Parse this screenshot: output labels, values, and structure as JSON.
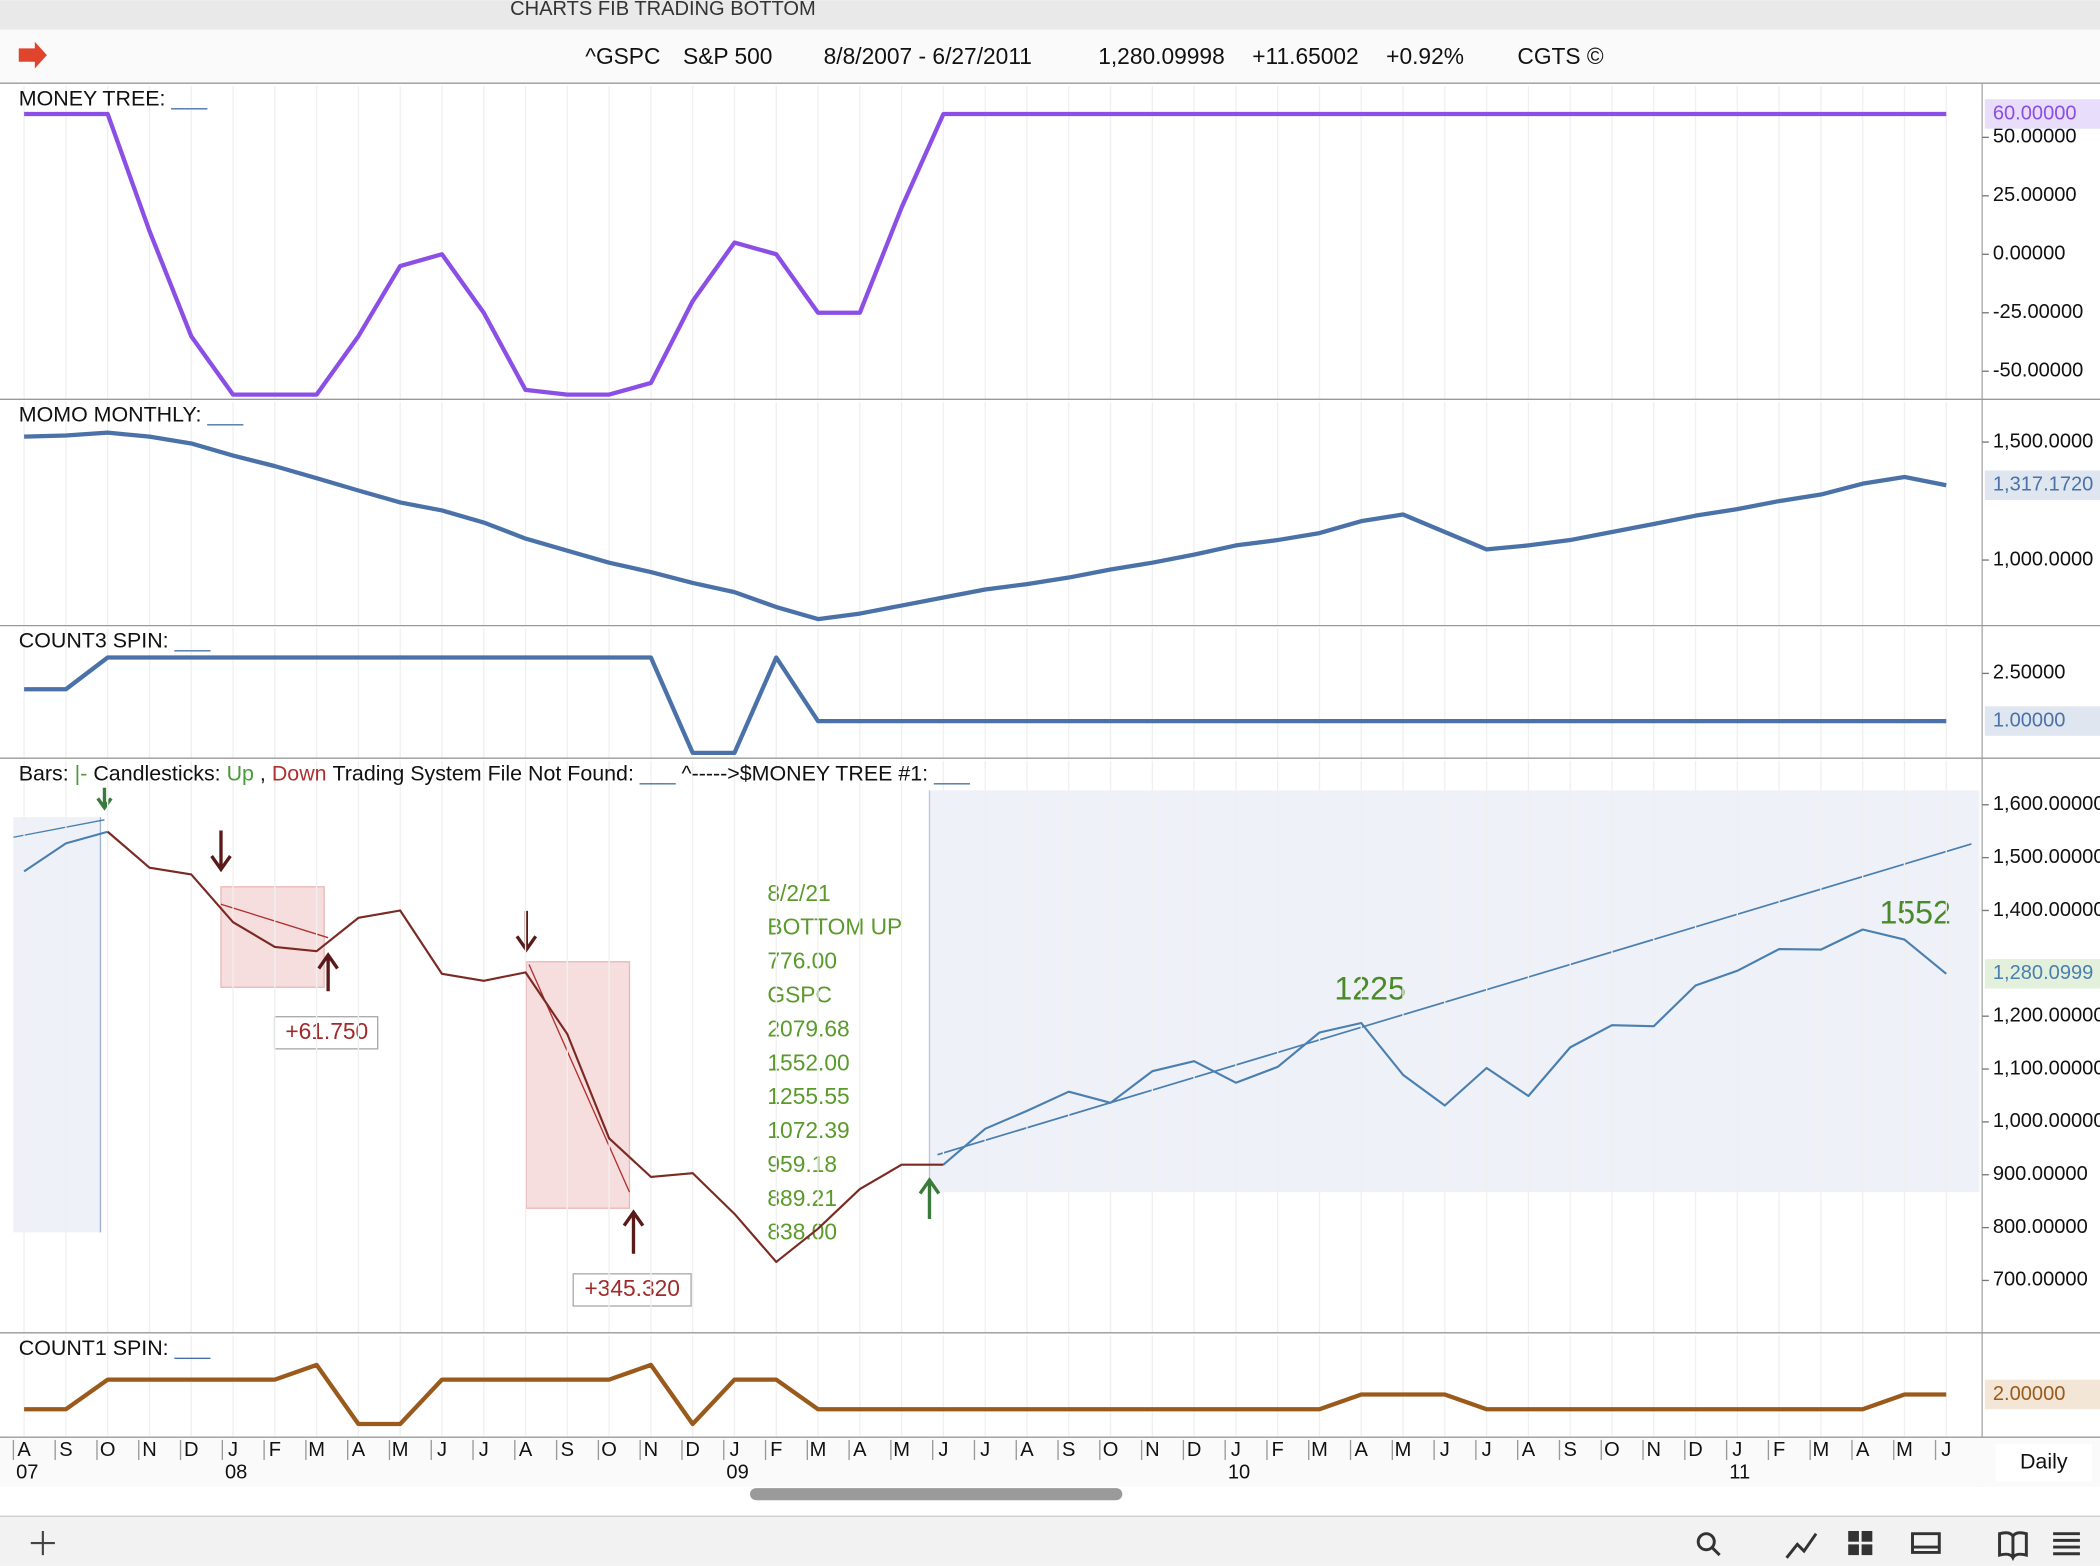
{
  "window_title": "CHARTS FIB TRADING BOTTOM",
  "header": {
    "symbol": "^GSPC",
    "name": "S&P 500",
    "range": "8/8/2007 - 6/27/2011",
    "last": "1,280.09998",
    "change": "+11.65002",
    "pct": "+0.92%",
    "source": "CGTS ©"
  },
  "time_axis": {
    "months": [
      "A",
      "S",
      "O",
      "N",
      "D",
      "J",
      "F",
      "M",
      "A",
      "M",
      "J",
      "J",
      "A",
      "S",
      "O",
      "N",
      "D",
      "J",
      "F",
      "M",
      "A",
      "M",
      "J",
      "J",
      "A",
      "S",
      "O",
      "N",
      "D",
      "J",
      "F",
      "M",
      "A",
      "M",
      "J",
      "J",
      "A",
      "S",
      "O",
      "N",
      "D",
      "J",
      "F",
      "M",
      "A",
      "M",
      "J"
    ],
    "years": [
      "07",
      null,
      null,
      null,
      null,
      "08",
      null,
      null,
      null,
      null,
      null,
      null,
      null,
      null,
      null,
      null,
      null,
      "09",
      null,
      null,
      null,
      null,
      null,
      null,
      null,
      null,
      null,
      null,
      null,
      "10",
      null,
      null,
      null,
      null,
      null,
      null,
      null,
      null,
      null,
      null,
      null,
      "11",
      null,
      null,
      null,
      null,
      null
    ]
  },
  "interval": "Daily",
  "chart_data": [
    {
      "type": "line",
      "title": "MONEY TREE:",
      "title_suffix": "___",
      "ylim": [
        -62,
        72
      ],
      "yticks": [
        {
          "value": -50,
          "label": "-50.00000"
        },
        {
          "value": -25,
          "label": "-25.00000"
        },
        {
          "value": 0,
          "label": "0.00000"
        },
        {
          "value": 25,
          "label": "25.00000"
        },
        {
          "value": 50,
          "label": "50.00000"
        }
      ],
      "series": [
        {
          "color": "#8b4fe6",
          "label_bg": "#e8ddfa",
          "values": [
            60,
            60,
            60,
            10,
            -35,
            -60,
            -60,
            -60,
            -35,
            -5,
            0,
            -25,
            -58,
            -60,
            -60,
            -55,
            -20,
            5,
            0,
            -25,
            -25,
            20,
            60,
            60,
            60,
            60,
            60,
            60,
            60,
            60,
            60,
            60,
            60,
            60,
            60,
            60,
            60,
            60,
            60,
            60,
            60,
            60,
            60,
            60,
            60,
            60,
            60
          ],
          "value_labels": [
            null,
            null,
            null,
            null,
            null,
            null,
            null,
            null,
            null,
            null,
            null,
            null,
            null,
            null,
            null,
            null,
            null,
            null,
            null,
            null,
            null,
            null,
            null,
            null,
            null,
            null,
            null,
            null,
            null,
            null,
            null,
            null,
            null,
            null,
            null,
            null,
            null,
            null,
            null,
            null,
            null,
            null,
            null,
            null,
            null,
            null,
            "60.00000"
          ]
        }
      ]
    },
    {
      "type": "line",
      "title": "MOMO MONTHLY:",
      "title_suffix": "___",
      "ylim": [
        722,
        1670
      ],
      "yticks": [
        {
          "value": 1000,
          "label": "1,000.0000"
        },
        {
          "value": 1500,
          "label": "1,500.0000"
        }
      ],
      "series": [
        {
          "color": "#4a72a8",
          "label_bg": "#dfe6ef",
          "values": [
            1523,
            1528,
            1540,
            1523,
            1494,
            1443,
            1398,
            1347,
            1295,
            1244,
            1210,
            1159,
            1091,
            1040,
            989,
            949,
            903,
            864,
            801,
            750,
            773,
            807,
            841,
            875,
            898,
            926,
            960,
            989,
            1023,
            1062,
            1085,
            1114,
            1165,
            1193,
            1119,
            1045,
            1062,
            1085,
            1119,
            1153,
            1188,
            1216,
            1250,
            1278,
            1324,
            1352,
            1317.172
          ],
          "value_labels": [
            null,
            null,
            null,
            null,
            null,
            null,
            null,
            null,
            null,
            null,
            null,
            null,
            null,
            null,
            null,
            null,
            null,
            null,
            null,
            null,
            null,
            null,
            null,
            null,
            null,
            null,
            null,
            null,
            null,
            null,
            null,
            null,
            null,
            null,
            null,
            null,
            null,
            null,
            null,
            null,
            null,
            null,
            null,
            null,
            null,
            null,
            "1,317.1720"
          ]
        }
      ]
    },
    {
      "type": "line",
      "title": "COUNT3 SPIN:",
      "title_suffix": "___",
      "ylim": [
        -0.17,
        3.92
      ],
      "yticks": [
        {
          "value": 2.5,
          "label": "2.50000"
        }
      ],
      "series": [
        {
          "color": "#4a72a8",
          "label_bg": "#dfe6ef",
          "values": [
            2,
            2,
            3,
            3,
            3,
            3,
            3,
            3,
            3,
            3,
            3,
            3,
            3,
            3,
            3,
            3,
            0,
            0,
            3,
            1,
            1,
            1,
            1,
            1,
            1,
            1,
            1,
            1,
            1,
            1,
            1,
            1,
            1,
            1,
            1,
            1,
            1,
            1,
            1,
            1,
            1,
            1,
            1,
            1,
            1,
            1,
            1
          ],
          "value_labels": [
            null,
            null,
            null,
            null,
            null,
            null,
            null,
            null,
            null,
            null,
            null,
            null,
            null,
            null,
            null,
            null,
            null,
            null,
            null,
            null,
            null,
            null,
            null,
            null,
            null,
            null,
            null,
            null,
            null,
            null,
            null,
            null,
            null,
            null,
            null,
            null,
            null,
            null,
            null,
            null,
            null,
            null,
            null,
            null,
            null,
            null,
            "1.00000"
          ]
        }
      ]
    },
    {
      "type": "line",
      "title": "Bars:",
      "legend": [
        {
          "text": "|-",
          "color": "#4a9a3a"
        },
        {
          "text": "Candlesticks:",
          "color": "#111"
        },
        {
          "text": "Up",
          "color": "#4a9a3a"
        },
        {
          "text": ",",
          "color": "#111"
        },
        {
          "text": "Down",
          "color": "#b03030"
        },
        {
          "text": "Trading System File Not Found:",
          "color": "#111"
        },
        {
          "text": "___",
          "color": "#4a72a8"
        },
        {
          "text": "^----->$MONEY TREE #1:",
          "color": "#111"
        },
        {
          "text": "___",
          "color": "#4a72a8"
        }
      ],
      "ylim": [
        601,
        1683
      ],
      "yticks": [
        {
          "value": 700,
          "label": "700.00000"
        },
        {
          "value": 800,
          "label": "800.00000"
        },
        {
          "value": 900,
          "label": "900.00000"
        },
        {
          "value": 1000,
          "label": "1,000.00000"
        },
        {
          "value": 1100,
          "label": "1,100.00000"
        },
        {
          "value": 1200,
          "label": "1,200.00000"
        },
        {
          "value": 1400,
          "label": "1,400.00000"
        },
        {
          "value": 1500,
          "label": "1,500.00000"
        },
        {
          "value": 1600,
          "label": "1,600.00000"
        }
      ],
      "series": [
        {
          "color": "#4a7fb0",
          "label_bg": "#e3f0dc",
          "values": [
            1474,
            1527,
            1549,
            null,
            null,
            null,
            null,
            null,
            null,
            null,
            null,
            null,
            null,
            null,
            null,
            null,
            null,
            null,
            null,
            null,
            null,
            null,
            919,
            987,
            1021,
            1057,
            1036,
            1096,
            1115,
            1074,
            1104,
            1169,
            1187,
            1089,
            1031,
            1102,
            1049,
            1141,
            1183,
            1181,
            1258,
            1286,
            1327,
            1326,
            1364,
            1345,
            1280.09998
          ],
          "value_labels": [
            null,
            null,
            null,
            null,
            null,
            null,
            null,
            null,
            null,
            null,
            null,
            null,
            null,
            null,
            null,
            null,
            null,
            null,
            null,
            null,
            null,
            null,
            null,
            null,
            null,
            null,
            null,
            null,
            null,
            null,
            null,
            null,
            null,
            null,
            null,
            null,
            null,
            null,
            null,
            null,
            null,
            null,
            null,
            null,
            null,
            null,
            "1,280.0999"
          ]
        },
        {
          "color": "#7a2a22",
          "values": [
            null,
            null,
            1549,
            1481,
            1468,
            1378,
            1331,
            1323,
            1386,
            1400,
            1280,
            1267,
            1283,
            1166,
            969,
            896,
            903,
            826,
            735,
            798,
            873,
            919,
            919,
            null,
            null,
            null,
            null,
            null,
            null,
            null,
            null,
            null,
            null,
            null,
            null,
            null,
            null,
            null,
            null,
            null,
            null,
            null,
            null,
            null,
            null,
            null,
            null
          ]
        }
      ],
      "annotations": [
        "+61.750",
        "+345.320",
        "1225",
        "1552"
      ],
      "note_lines": [
        "8/2/21",
        "BOTTOM UP",
        "776.00",
        "GSPC",
        "2079.68",
        "1552.00",
        "1255.55",
        "1072.39",
        "959.18",
        "889.21",
        "838.00"
      ]
    },
    {
      "type": "line",
      "title": "COUNT1 SPIN:",
      "title_suffix": "___",
      "ylim": [
        -0.9,
        6
      ],
      "yticks": [],
      "series": [
        {
          "color": "#9a5a1c",
          "label_bg": "#f3e6d6",
          "values": [
            1,
            1,
            3,
            3,
            3,
            3,
            3,
            4,
            0,
            0,
            3,
            3,
            3,
            3,
            3,
            4,
            0,
            3,
            3,
            1,
            1,
            1,
            1,
            1,
            1,
            1,
            1,
            1,
            1,
            1,
            1,
            1,
            2,
            2,
            2,
            1,
            1,
            1,
            1,
            1,
            1,
            1,
            1,
            1,
            1,
            2,
            2
          ],
          "value_labels": [
            null,
            null,
            null,
            null,
            null,
            null,
            null,
            null,
            null,
            null,
            null,
            null,
            null,
            null,
            null,
            null,
            null,
            null,
            null,
            null,
            null,
            null,
            null,
            null,
            null,
            null,
            null,
            null,
            null,
            null,
            null,
            null,
            null,
            null,
            null,
            null,
            null,
            null,
            null,
            null,
            null,
            null,
            null,
            null,
            null,
            null,
            "2.00000"
          ]
        }
      ]
    }
  ]
}
